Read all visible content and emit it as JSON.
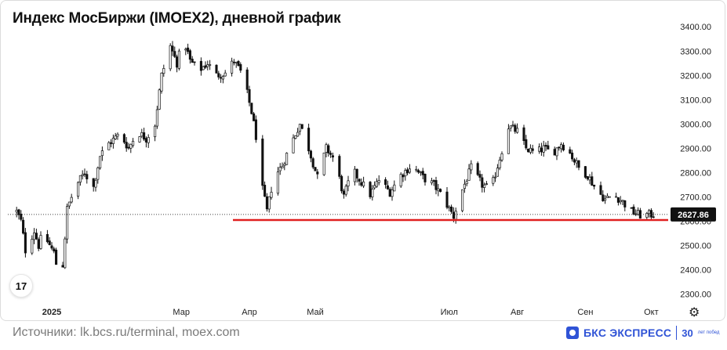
{
  "title": "Индекс МосБиржи (IMOEX2), дневной график",
  "footer": "Источники: lk.bcs.ru/terminal, moex.com",
  "brand": {
    "name": "БКС ЭКСПРЕСС",
    "years": "30",
    "years_caption": "лет побед",
    "color": "#2f53d6"
  },
  "icons": {
    "tradingview": "tradingview-logo-icon",
    "settings": "gear-icon"
  },
  "chart_data": {
    "type": "candlestick",
    "title": "Индекс МосБиржи (IMOEX2), дневной график",
    "ylim": [
      2270,
      3420
    ],
    "y_ticks": [
      "2300.00",
      "2400.00",
      "2500.00",
      "2600.00",
      "2700.00",
      "2800.00",
      "2900.00",
      "3000.00",
      "3100.00",
      "3200.00",
      "3300.00",
      "3400.00"
    ],
    "x_ticks": [
      {
        "label": "2025",
        "bold": true,
        "date": "2025-01-01"
      },
      {
        "label": "Мар",
        "date": "2025-03-01"
      },
      {
        "label": "Апр",
        "date": "2025-04-01"
      },
      {
        "label": "Май",
        "date": "2025-05-01"
      },
      {
        "label": "Июл",
        "date": "2025-07-01"
      },
      {
        "label": "Авг",
        "date": "2025-08-01"
      },
      {
        "label": "Сен",
        "date": "2025-09-01"
      },
      {
        "label": "Окт",
        "date": "2025-10-01"
      }
    ],
    "last_price": 2627.86,
    "last_price_label": "2627.86",
    "support_level": 2605,
    "support_color": "#e02020",
    "up_color": "#ffffff",
    "down_color": "#111111",
    "series_close_path": [
      [
        "2024-12-16",
        2640
      ],
      [
        "2024-12-18",
        2600
      ],
      [
        "2024-12-20",
        2480
      ],
      [
        "2024-12-24",
        2560
      ],
      [
        "2024-12-26",
        2500
      ],
      [
        "2024-12-28",
        2550
      ],
      [
        "2025-01-02",
        2470
      ],
      [
        "2025-01-04",
        2380
      ],
      [
        "2025-01-06",
        2420
      ],
      [
        "2025-01-08",
        2650
      ],
      [
        "2025-01-10",
        2700
      ],
      [
        "2025-01-13",
        2760
      ],
      [
        "2025-01-16",
        2800
      ],
      [
        "2025-01-20",
        2740
      ],
      [
        "2025-01-23",
        2870
      ],
      [
        "2025-01-27",
        2920
      ],
      [
        "2025-02-01",
        2960
      ],
      [
        "2025-02-05",
        2900
      ],
      [
        "2025-02-09",
        2970
      ],
      [
        "2025-02-13",
        2940
      ],
      [
        "2025-02-17",
        3000
      ],
      [
        "2025-02-20",
        3200
      ],
      [
        "2025-02-24",
        3320
      ],
      [
        "2025-02-27",
        3250
      ],
      [
        "2025-03-02",
        3350
      ],
      [
        "2025-03-05",
        3260
      ],
      [
        "2025-03-09",
        3220
      ],
      [
        "2025-03-13",
        3250
      ],
      [
        "2025-03-17",
        3200
      ],
      [
        "2025-03-21",
        3210
      ],
      [
        "2025-03-25",
        3260
      ],
      [
        "2025-03-29",
        3200
      ],
      [
        "2025-04-02",
        3050
      ],
      [
        "2025-04-05",
        2900
      ],
      [
        "2025-04-07",
        2730
      ],
      [
        "2025-04-09",
        2640
      ],
      [
        "2025-04-12",
        2780
      ],
      [
        "2025-04-16",
        2830
      ],
      [
        "2025-04-20",
        2920
      ],
      [
        "2025-04-24",
        3000
      ],
      [
        "2025-04-28",
        2900
      ],
      [
        "2025-05-02",
        2780
      ],
      [
        "2025-05-06",
        2900
      ],
      [
        "2025-05-10",
        2850
      ],
      [
        "2025-05-14",
        2700
      ],
      [
        "2025-05-18",
        2810
      ],
      [
        "2025-05-22",
        2760
      ],
      [
        "2025-05-26",
        2710
      ],
      [
        "2025-05-30",
        2770
      ],
      [
        "2025-06-04",
        2720
      ],
      [
        "2025-06-09",
        2790
      ],
      [
        "2025-06-14",
        2830
      ],
      [
        "2025-06-19",
        2780
      ],
      [
        "2025-06-24",
        2750
      ],
      [
        "2025-06-28",
        2700
      ],
      [
        "2025-07-03",
        2620
      ],
      [
        "2025-07-07",
        2730
      ],
      [
        "2025-07-11",
        2820
      ],
      [
        "2025-07-16",
        2750
      ],
      [
        "2025-07-20",
        2730
      ],
      [
        "2025-07-24",
        2860
      ],
      [
        "2025-07-28",
        2990
      ],
      [
        "2025-08-01",
        2970
      ],
      [
        "2025-08-05",
        2900
      ],
      [
        "2025-08-09",
        2880
      ],
      [
        "2025-08-13",
        2900
      ],
      [
        "2025-08-17",
        2880
      ],
      [
        "2025-08-21",
        2920
      ],
      [
        "2025-08-25",
        2880
      ],
      [
        "2025-08-29",
        2820
      ],
      [
        "2025-09-02",
        2790
      ],
      [
        "2025-09-06",
        2730
      ],
      [
        "2025-09-10",
        2690
      ],
      [
        "2025-09-14",
        2710
      ],
      [
        "2025-09-18",
        2680
      ],
      [
        "2025-09-22",
        2640
      ],
      [
        "2025-09-26",
        2625
      ],
      [
        "2025-10-02",
        2627.86
      ]
    ]
  }
}
